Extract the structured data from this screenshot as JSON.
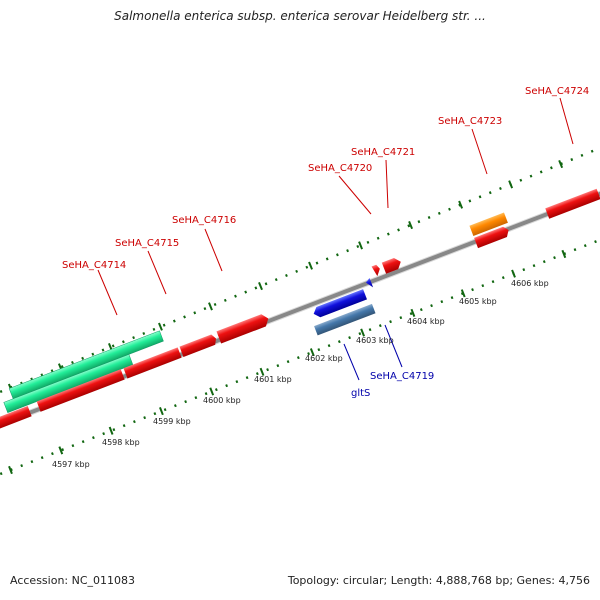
{
  "title": "Salmonella enterica subsp. enterica serovar Heidelberg str. ...",
  "accession": "Accession: NC_011083",
  "topology": "Topology: circular; Length: 4,888,768 bp; Genes: 4,756",
  "colors": {
    "forward": "#ee1111",
    "forward_hl": "#ff7777",
    "forward_dark": "#aa0000",
    "green": "#22ee99",
    "green_hl": "#88ffcc",
    "orange": "#ff8800",
    "orange_hl": "#ffbb55",
    "reverse": "#1111dd",
    "reverse_hl": "#6677ff",
    "steel": "#4477aa",
    "steel_hl": "#88aacc",
    "ruler": "#116611",
    "axis": "#888888",
    "label_forward": "#cc0000",
    "label_reverse": "#0000aa"
  },
  "tick_labels": [
    "4597 kbp",
    "4598 kbp",
    "4599 kbp",
    "4600 kbp",
    "4601 kbp",
    "4602 kbp",
    "4603 kbp",
    "4604 kbp",
    "4605 kbp",
    "4606 kbp"
  ],
  "gene_labels": {
    "top": [
      "SeHA_C4714",
      "SeHA_C4715",
      "SeHA_C4716",
      "SeHA_C4720",
      "SeHA_C4721",
      "SeHA_C4723",
      "SeHA_C4724"
    ],
    "bottom": [
      "gltS",
      "SeHA_C4719"
    ]
  }
}
